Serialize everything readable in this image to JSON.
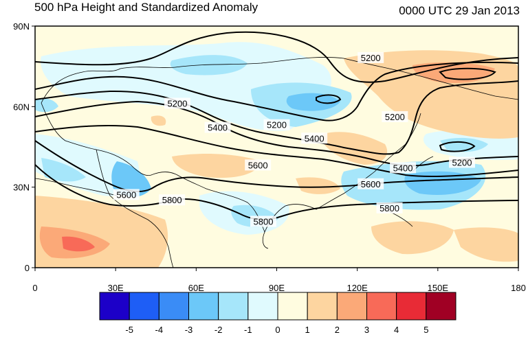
{
  "title": "500 hPa Height and Standardized Anomaly",
  "time_label": "0000 UTC 29 Jan 2013",
  "map": {
    "lon_range": [
      0,
      180
    ],
    "lat_range": [
      0,
      90
    ],
    "lat_ticks": [
      {
        "value": 90,
        "label": "90N"
      },
      {
        "value": 60,
        "label": "60N"
      },
      {
        "value": 30,
        "label": "30N"
      },
      {
        "value": 0,
        "label": "0"
      }
    ],
    "lon_ticks": [
      {
        "value": 0,
        "label": "0"
      },
      {
        "value": 30,
        "label": "30E"
      },
      {
        "value": 60,
        "label": "60E"
      },
      {
        "value": 90,
        "label": "90E"
      },
      {
        "value": 120,
        "label": "120E"
      },
      {
        "value": 150,
        "label": "150E"
      },
      {
        "value": 180,
        "label": "180"
      }
    ],
    "contour_labels": [
      {
        "text": "5200",
        "lon": 125,
        "lat": 78
      },
      {
        "text": "5200",
        "lon": 53,
        "lat": 61
      },
      {
        "text": "5200",
        "lon": 90,
        "lat": 53
      },
      {
        "text": "5200",
        "lon": 134,
        "lat": 56
      },
      {
        "text": "5200",
        "lon": 159,
        "lat": 39
      },
      {
        "text": "5400",
        "lon": 68,
        "lat": 52
      },
      {
        "text": "5400",
        "lon": 104,
        "lat": 48
      },
      {
        "text": "5400",
        "lon": 137,
        "lat": 37
      },
      {
        "text": "5600",
        "lon": 83,
        "lat": 38
      },
      {
        "text": "5600",
        "lon": 34,
        "lat": 27
      },
      {
        "text": "5600",
        "lon": 125,
        "lat": 31
      },
      {
        "text": "5800",
        "lon": 51,
        "lat": 25
      },
      {
        "text": "5800",
        "lon": 85,
        "lat": 17
      },
      {
        "text": "5800",
        "lon": 132,
        "lat": 22
      }
    ]
  },
  "colorbar": {
    "colors": [
      "#1c00c8",
      "#1e5ef6",
      "#3a8cf6",
      "#6cc8f8",
      "#a6e6fa",
      "#e0fafe",
      "#fffce0",
      "#fdd5a0",
      "#fba978",
      "#f86a58",
      "#e82b36",
      "#a00024"
    ],
    "labels": [
      "-5",
      "-4",
      "-3",
      "-2",
      "-1",
      "0",
      "1",
      "2",
      "3",
      "4",
      "5"
    ]
  }
}
